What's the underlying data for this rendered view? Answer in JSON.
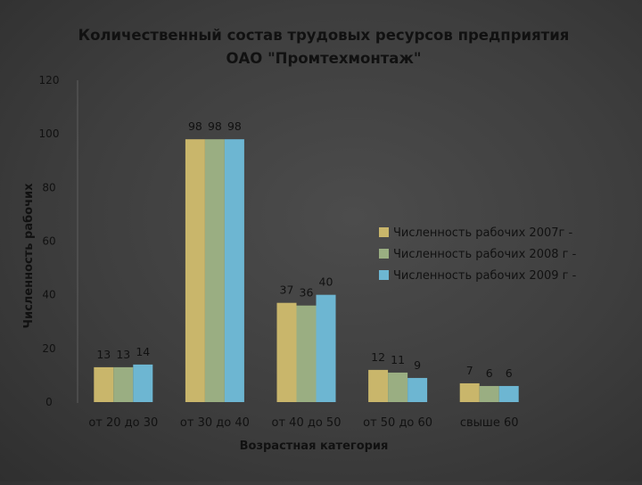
{
  "chart_data": {
    "type": "bar",
    "title_line1": "Количественный состав трудовых ресурсов предприятия",
    "title_line2": "ОАО \"Промтехмонтаж\"",
    "xlabel": "Возрастная категория",
    "ylabel": "Численность рабочих",
    "ylim": [
      0,
      120
    ],
    "yticks": [
      0,
      20,
      40,
      60,
      80,
      100,
      120
    ],
    "grid": false,
    "legend_position": "right",
    "categories": [
      "от 20 до 30",
      "от 30 до 40",
      "от 40 до 50",
      "от 50 до 60",
      "свыше 60"
    ],
    "series": [
      {
        "name": "Численность рабочих 2007г -",
        "color": "#c9b66b",
        "values": [
          13,
          98,
          37,
          12,
          7
        ]
      },
      {
        "name": "Численность рабочих 2008 г -",
        "color": "#9aae82",
        "values": [
          13,
          98,
          36,
          11,
          6
        ]
      },
      {
        "name": "Численность рабочих 2009 г -",
        "color": "#6db6d2",
        "values": [
          14,
          98,
          40,
          9,
          6
        ]
      }
    ]
  }
}
